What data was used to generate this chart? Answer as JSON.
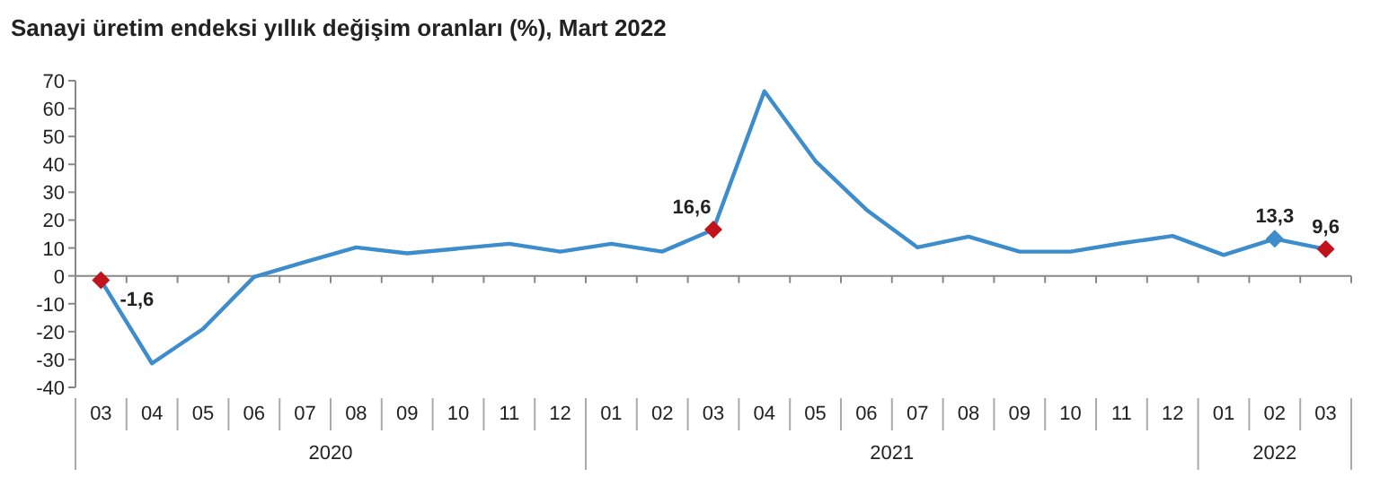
{
  "chart_data": {
    "type": "line",
    "title": "Sanayi üretim endeksi yıllık değişim oranları (%), Mart 2022",
    "categories": [
      "03",
      "04",
      "05",
      "06",
      "07",
      "08",
      "09",
      "10",
      "11",
      "12",
      "01",
      "02",
      "03",
      "04",
      "05",
      "06",
      "07",
      "08",
      "09",
      "10",
      "11",
      "12",
      "01",
      "02",
      "03"
    ],
    "series": [
      {
        "color": "#3d8ccb",
        "marker": "none",
        "values": [
          -1.6,
          -31.4,
          -19,
          -0.4,
          5,
          10.2,
          8.1,
          9.8,
          11.5,
          8.7,
          11.5,
          8.7,
          16.6,
          66.2,
          41.2,
          23.7,
          10.2,
          14.1,
          8.7,
          8.7,
          11.7,
          14.3,
          7.5,
          13.3,
          9.6
        ],
        "value_labels": [
          "-1,6",
          null,
          null,
          null,
          null,
          null,
          null,
          null,
          null,
          null,
          null,
          null,
          "16,6",
          null,
          null,
          null,
          null,
          null,
          null,
          null,
          null,
          null,
          null,
          "13,3",
          "9,6"
        ]
      },
      {
        "type": "scatter",
        "marker": "diamond",
        "values": [
          -1.6,
          null,
          null,
          null,
          null,
          null,
          null,
          null,
          null,
          null,
          null,
          null,
          16.6,
          null,
          null,
          null,
          null,
          null,
          null,
          null,
          null,
          null,
          null,
          13.3,
          9.6
        ],
        "colors": [
          "#c0131c",
          null,
          null,
          null,
          null,
          null,
          null,
          null,
          null,
          null,
          null,
          null,
          "#c0131c",
          null,
          null,
          null,
          null,
          null,
          null,
          null,
          null,
          null,
          null,
          "#3d8ccb",
          "#c0131c"
        ]
      }
    ],
    "annotations": [
      "2020",
      "2021",
      "2022"
    ],
    "ylim": [
      -40,
      70
    ],
    "yticks": [
      -40,
      -30,
      -20,
      -10,
      0,
      10,
      20,
      30,
      40,
      50,
      60,
      70
    ]
  }
}
